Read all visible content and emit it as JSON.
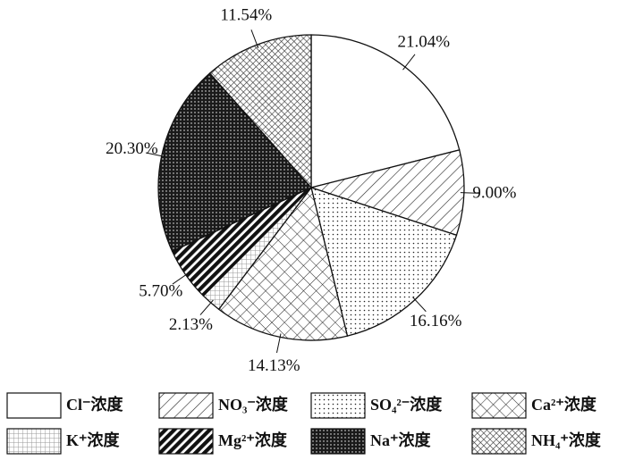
{
  "chart_data": {
    "type": "pie",
    "categories": [
      "Cl⁻浓度",
      "NO₃⁻浓度",
      "SO₄²⁻浓度",
      "Ca²⁺浓度",
      "K⁺浓度",
      "Mg²⁺浓度",
      "Na⁺浓度",
      "NH₄⁺浓度"
    ],
    "values": [
      21.04,
      9.0,
      16.16,
      14.13,
      2.13,
      5.7,
      20.3,
      11.54
    ],
    "value_labels": [
      "21.04%",
      "9.00%",
      "16.16%",
      "14.13%",
      "2.13%",
      "5.70%",
      "20.30%",
      "11.54%"
    ],
    "patterns": [
      "solid",
      "hatch",
      "dots",
      "diamond",
      "grid",
      "thick-hatch",
      "dense",
      "checker"
    ],
    "legend": "bottom"
  }
}
